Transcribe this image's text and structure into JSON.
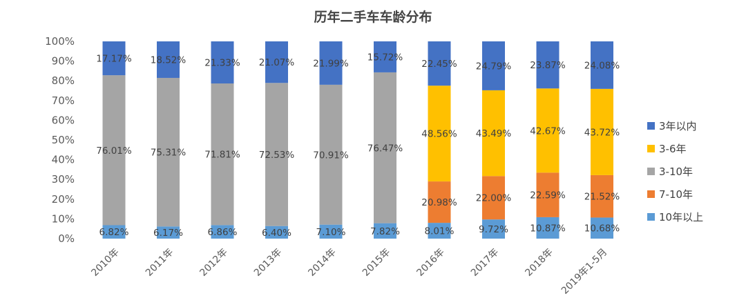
{
  "chart_data": {
    "type": "stacked-bar-100",
    "title": "历年二手车车龄分布",
    "categories": [
      "2010年",
      "2011年",
      "2012年",
      "2013年",
      "2014年",
      "2015年",
      "2016年",
      "2017年",
      "2018年",
      "2019年1-5月"
    ],
    "y_ticks": [
      "0%",
      "10%",
      "20%",
      "30%",
      "40%",
      "50%",
      "60%",
      "70%",
      "80%",
      "90%",
      "100%"
    ],
    "ylim": [
      0,
      100
    ],
    "legend_position": "right",
    "series": [
      {
        "name": "10年以上",
        "color": "#5b9bd5",
        "values": [
          6.82,
          6.17,
          6.86,
          6.4,
          7.1,
          7.82,
          8.01,
          9.72,
          10.87,
          10.68
        ],
        "labels": [
          "6.82%",
          "6.17%",
          "6.86%",
          "6.40%",
          "7.10%",
          "7.82%",
          "8.01%",
          "9.72%",
          "10.87%",
          "10.68%"
        ]
      },
      {
        "name": "7-10年",
        "color": "#ed7d31",
        "values": [
          0,
          0,
          0,
          0,
          0,
          0,
          20.98,
          22.0,
          22.59,
          21.52
        ],
        "labels": [
          "",
          "",
          "",
          "",
          "",
          "",
          "20.98%",
          "22.00%",
          "22.59%",
          "21.52%"
        ]
      },
      {
        "name": "3-10年",
        "color": "#a5a5a5",
        "values": [
          76.01,
          75.31,
          71.81,
          72.53,
          70.91,
          76.47,
          0,
          0,
          0,
          0
        ],
        "labels": [
          "76.01%",
          "75.31%",
          "71.81%",
          "72.53%",
          "70.91%",
          "76.47%",
          "",
          "",
          "",
          ""
        ]
      },
      {
        "name": "3-6年",
        "color": "#ffc000",
        "values": [
          0,
          0,
          0,
          0,
          0,
          0,
          48.56,
          43.49,
          42.67,
          43.72
        ],
        "labels": [
          "",
          "",
          "",
          "",
          "",
          "",
          "48.56%",
          "43.49%",
          "42.67%",
          "43.72%"
        ]
      },
      {
        "name": "3年以内",
        "color": "#4472c4",
        "values": [
          17.17,
          18.52,
          21.33,
          21.07,
          21.99,
          15.72,
          22.45,
          24.79,
          23.87,
          24.08
        ],
        "labels": [
          "17.17%",
          "18.52%",
          "21.33%",
          "21.07%",
          "21.99%",
          "15.72%",
          "22.45%",
          "24.79%",
          "23.87%",
          "24.08%"
        ]
      }
    ],
    "legend_order": [
      "3年以内",
      "3-6年",
      "3-10年",
      "7-10年",
      "10年以上"
    ]
  }
}
